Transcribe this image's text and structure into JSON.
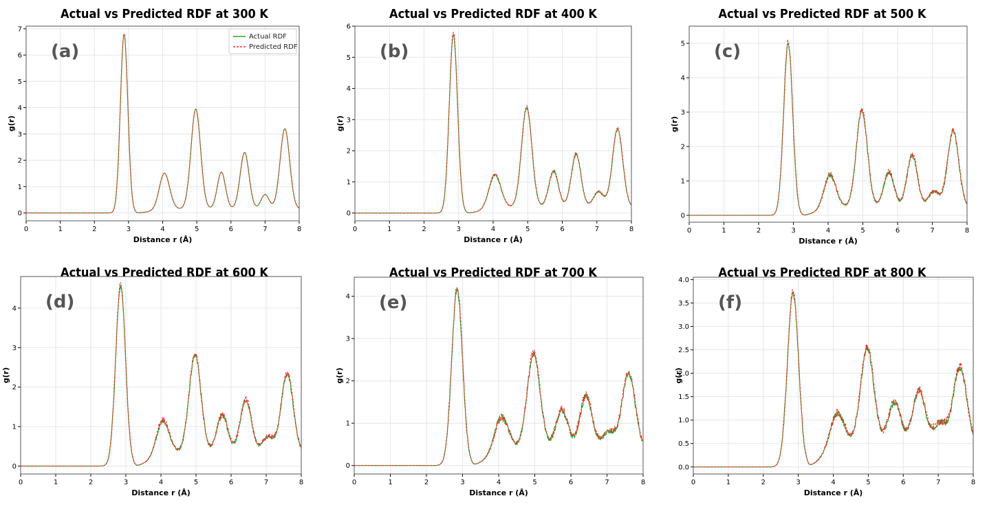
{
  "legend": {
    "actual_label": "Actual RDF",
    "predicted_label": "Predicted RDF"
  },
  "colors": {
    "actual": "#2ca02c",
    "predicted": "#ff2a2a",
    "grid": "#e6e6e6",
    "tag": "#555555"
  },
  "chart_data": [
    {
      "type": "line",
      "panel_tag": "(a)",
      "title": "Actual vs Predicted RDF at 300 K",
      "xlabel": "Distance r (Å)",
      "ylabel": "g(r)",
      "xlim": [
        0,
        8
      ],
      "ylim": [
        -0.3,
        7.1
      ],
      "xticks": [
        0,
        1,
        2,
        3,
        4,
        5,
        6,
        7,
        8
      ],
      "xtick_labels": [
        "0",
        "1",
        "2",
        "3",
        "4",
        "5",
        "6",
        "7",
        "8"
      ],
      "yticks": [
        0,
        1,
        2,
        3,
        4,
        5,
        6,
        7
      ],
      "ytick_labels": [
        "0",
        "1",
        "2",
        "3",
        "4",
        "5",
        "6",
        "7"
      ],
      "legend_position": "top-right",
      "noise": 0.0,
      "peaks": [
        {
          "r": 2.87,
          "h": 6.8,
          "w": 0.11
        },
        {
          "r": 4.05,
          "h": 1.4,
          "w": 0.15
        },
        {
          "r": 4.97,
          "h": 3.8,
          "w": 0.14
        },
        {
          "r": 5.72,
          "h": 1.4,
          "w": 0.12
        },
        {
          "r": 6.4,
          "h": 2.15,
          "w": 0.13
        },
        {
          "r": 7.0,
          "h": 0.55,
          "w": 0.12
        },
        {
          "r": 7.58,
          "h": 3.05,
          "w": 0.14
        }
      ],
      "onset": 2.45,
      "baseline_tail": 0.25,
      "series": [
        {
          "name": "Actual RDF"
        },
        {
          "name": "Predicted RDF"
        }
      ]
    },
    {
      "type": "line",
      "panel_tag": "(b)",
      "title": "Actual vs Predicted RDF at 400 K",
      "xlabel": "Distance r (Å)",
      "ylabel": "g(r)",
      "xlim": [
        0,
        8
      ],
      "ylim": [
        -0.25,
        6.0
      ],
      "xticks": [
        0,
        1,
        2,
        3,
        4,
        5,
        6,
        7,
        8
      ],
      "xtick_labels": [
        "0",
        "1",
        "2",
        "3",
        "4",
        "5",
        "6",
        "7",
        "8"
      ],
      "yticks": [
        0,
        1,
        2,
        3,
        4,
        5,
        6
      ],
      "ytick_labels": [
        "0",
        "1",
        "2",
        "3",
        "4",
        "5",
        "6"
      ],
      "legend_position": "none",
      "noise": 0.04,
      "peaks": [
        {
          "r": 2.85,
          "h": 5.72,
          "w": 0.12
        },
        {
          "r": 4.05,
          "h": 1.1,
          "w": 0.17
        },
        {
          "r": 4.97,
          "h": 3.2,
          "w": 0.15
        },
        {
          "r": 5.75,
          "h": 1.15,
          "w": 0.14
        },
        {
          "r": 6.4,
          "h": 1.7,
          "w": 0.14
        },
        {
          "r": 7.05,
          "h": 0.5,
          "w": 0.15
        },
        {
          "r": 7.6,
          "h": 2.5,
          "w": 0.15
        }
      ],
      "onset": 2.4,
      "baseline_tail": 0.3,
      "series": [
        {
          "name": "Actual RDF"
        },
        {
          "name": "Predicted RDF"
        }
      ]
    },
    {
      "type": "line",
      "panel_tag": "(c)",
      "title": "Actual vs Predicted RDF at 500 K",
      "xlabel": "Distance r (Å)",
      "ylabel": "g(r)",
      "xlim": [
        0,
        8
      ],
      "ylim": [
        -0.2,
        5.5
      ],
      "xticks": [
        0,
        1,
        2,
        3,
        4,
        5,
        6,
        7,
        8
      ],
      "xtick_labels": [
        "0",
        "1",
        "2",
        "3",
        "4",
        "5",
        "6",
        "7",
        "8"
      ],
      "yticks": [
        0,
        1,
        2,
        3,
        4,
        5
      ],
      "ytick_labels": [
        "0",
        "1",
        "2",
        "3",
        "4",
        "5"
      ],
      "legend_position": "none",
      "noise": 0.07,
      "peaks": [
        {
          "r": 2.85,
          "h": 5.0,
          "w": 0.13
        },
        {
          "r": 4.05,
          "h": 1.0,
          "w": 0.17
        },
        {
          "r": 4.97,
          "h": 2.8,
          "w": 0.16
        },
        {
          "r": 5.75,
          "h": 1.0,
          "w": 0.15
        },
        {
          "r": 6.42,
          "h": 1.5,
          "w": 0.15
        },
        {
          "r": 7.05,
          "h": 0.45,
          "w": 0.16
        },
        {
          "r": 7.6,
          "h": 2.2,
          "w": 0.16
        }
      ],
      "onset": 2.3,
      "baseline_tail": 0.4,
      "series": [
        {
          "name": "Actual RDF"
        },
        {
          "name": "Predicted RDF"
        }
      ]
    },
    {
      "type": "line",
      "panel_tag": "(d)",
      "title": "Actual vs Predicted RDF at 600 K",
      "xlabel": "Distance r (Å)",
      "ylabel": "g(r)",
      "xlim": [
        0,
        8
      ],
      "ylim": [
        -0.2,
        4.8
      ],
      "xticks": [
        0,
        1,
        2,
        3,
        4,
        5,
        6,
        7,
        8
      ],
      "xtick_labels": [
        "0",
        "1",
        "2",
        "3",
        "4",
        "5",
        "6",
        "7",
        "8"
      ],
      "yticks": [
        0,
        1,
        2,
        3,
        4
      ],
      "ytick_labels": [
        "0",
        "1",
        "2",
        "3",
        "4"
      ],
      "legend_position": "none",
      "noise": 0.07,
      "peaks": [
        {
          "r": 2.85,
          "h": 4.55,
          "w": 0.14
        },
        {
          "r": 4.05,
          "h": 0.9,
          "w": 0.18
        },
        {
          "r": 4.97,
          "h": 2.5,
          "w": 0.17
        },
        {
          "r": 5.75,
          "h": 0.95,
          "w": 0.16
        },
        {
          "r": 6.42,
          "h": 1.35,
          "w": 0.16
        },
        {
          "r": 7.05,
          "h": 0.4,
          "w": 0.17
        },
        {
          "r": 7.6,
          "h": 2.0,
          "w": 0.17
        }
      ],
      "onset": 2.2,
      "baseline_tail": 0.55,
      "series": [
        {
          "name": "Actual RDF"
        },
        {
          "name": "Predicted RDF"
        }
      ]
    },
    {
      "type": "line",
      "panel_tag": "(e)",
      "title": "Actual vs Predicted RDF at 700 K",
      "xlabel": "Distance r (Å)",
      "ylabel": "g(r)",
      "xlim": [
        0,
        8
      ],
      "ylim": [
        -0.2,
        4.45
      ],
      "xticks": [
        0,
        1,
        2,
        3,
        4,
        5,
        6,
        7,
        8
      ],
      "xtick_labels": [
        "0",
        "1",
        "2",
        "3",
        "4",
        "5",
        "6",
        "7",
        "8"
      ],
      "yticks": [
        0,
        1,
        2,
        3,
        4
      ],
      "ytick_labels": [
        "0",
        "1",
        "2",
        "3",
        "4"
      ],
      "legend_position": "none",
      "noise": 0.08,
      "peaks": [
        {
          "r": 2.85,
          "h": 4.15,
          "w": 0.15
        },
        {
          "r": 4.07,
          "h": 0.82,
          "w": 0.19
        },
        {
          "r": 4.97,
          "h": 2.25,
          "w": 0.18
        },
        {
          "r": 5.75,
          "h": 0.92,
          "w": 0.17
        },
        {
          "r": 6.42,
          "h": 1.25,
          "w": 0.17
        },
        {
          "r": 7.05,
          "h": 0.4,
          "w": 0.18
        },
        {
          "r": 7.6,
          "h": 1.8,
          "w": 0.18
        }
      ],
      "onset": 2.1,
      "baseline_tail": 0.65,
      "series": [
        {
          "name": "Actual RDF"
        },
        {
          "name": "Predicted RDF"
        }
      ]
    },
    {
      "type": "line",
      "panel_tag": "(f)",
      "title": "Actual vs Predicted RDF at 800 K",
      "xlabel": "Distance r (Å)",
      "ylabel": "g(r)",
      "xlim": [
        0,
        8
      ],
      "ylim": [
        -0.15,
        4.05
      ],
      "xticks": [
        0,
        1,
        2,
        3,
        4,
        5,
        6,
        7,
        8
      ],
      "xtick_labels": [
        "0",
        "1",
        "2",
        "3",
        "4",
        "5",
        "6",
        "7",
        "8"
      ],
      "yticks": [
        0,
        0.5,
        1,
        1.5,
        2,
        2.5,
        3,
        3.5,
        4
      ],
      "ytick_labels": [
        "0.0",
        "0.5",
        "1.0",
        "1.5",
        "2.0",
        "2.5",
        "3.0",
        "3.5",
        "4.0"
      ],
      "legend_position": "none",
      "noise": 0.07,
      "peaks": [
        {
          "r": 2.85,
          "h": 3.7,
          "w": 0.16
        },
        {
          "r": 4.1,
          "h": 0.75,
          "w": 0.2
        },
        {
          "r": 4.97,
          "h": 2.05,
          "w": 0.19
        },
        {
          "r": 5.75,
          "h": 0.9,
          "w": 0.18
        },
        {
          "r": 6.45,
          "h": 1.15,
          "w": 0.18
        },
        {
          "r": 7.05,
          "h": 0.45,
          "w": 0.19
        },
        {
          "r": 7.62,
          "h": 1.65,
          "w": 0.19
        }
      ],
      "onset": 2.0,
      "baseline_tail": 0.8,
      "series": [
        {
          "name": "Actual RDF"
        },
        {
          "name": "Predicted RDF"
        }
      ]
    }
  ]
}
